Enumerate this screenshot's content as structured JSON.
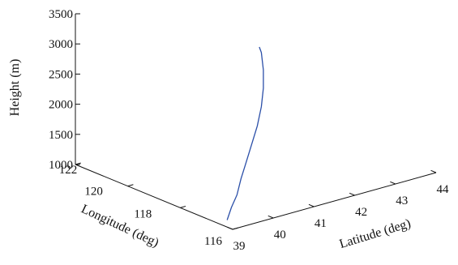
{
  "chart_data": {
    "type": "line",
    "projection": "3d",
    "title": "",
    "grid": false,
    "axes": {
      "z": {
        "label": "Height (m)",
        "range": [
          1000,
          3500
        ],
        "ticks": [
          1000,
          1500,
          2000,
          2500,
          3000,
          3500
        ],
        "tick_labels": [
          "1000",
          "1500",
          "2000",
          "2500",
          "3000",
          "3500"
        ]
      },
      "longitude": {
        "label": "Longitude (deg)",
        "range": [
          116,
          122
        ],
        "ticks": [
          116,
          118,
          120,
          122
        ],
        "tick_labels": [
          "116",
          "118",
          "120",
          "122"
        ]
      },
      "latitude": {
        "label": "Latitude (deg)",
        "range": [
          39,
          44
        ],
        "ticks": [
          39,
          40,
          41,
          42,
          43,
          44
        ],
        "tick_labels": [
          "39",
          "40",
          "41",
          "42",
          "43",
          "44"
        ]
      }
    },
    "series": [
      {
        "color": "#2b4fa8",
        "points": [
          {
            "longitude": 116.6,
            "latitude": 39.25,
            "height": 1000
          },
          {
            "longitude": 116.9,
            "latitude": 39.55,
            "height": 1100
          },
          {
            "longitude": 117.0,
            "latitude": 39.75,
            "height": 1250
          },
          {
            "longitude": 117.0,
            "latitude": 39.85,
            "height": 1500
          },
          {
            "longitude": 117.0,
            "latitude": 39.95,
            "height": 1700
          },
          {
            "longitude": 117.0,
            "latitude": 40.1,
            "height": 2000
          },
          {
            "longitude": 117.0,
            "latitude": 40.25,
            "height": 2300
          },
          {
            "longitude": 117.0,
            "latitude": 40.35,
            "height": 2600
          },
          {
            "longitude": 117.0,
            "latitude": 40.4,
            "height": 2900
          },
          {
            "longitude": 117.0,
            "latitude": 40.4,
            "height": 3200
          },
          {
            "longitude": 117.0,
            "latitude": 40.35,
            "height": 3500
          },
          {
            "longitude": 117.0,
            "latitude": 40.3,
            "height": 3600
          }
        ]
      }
    ]
  }
}
